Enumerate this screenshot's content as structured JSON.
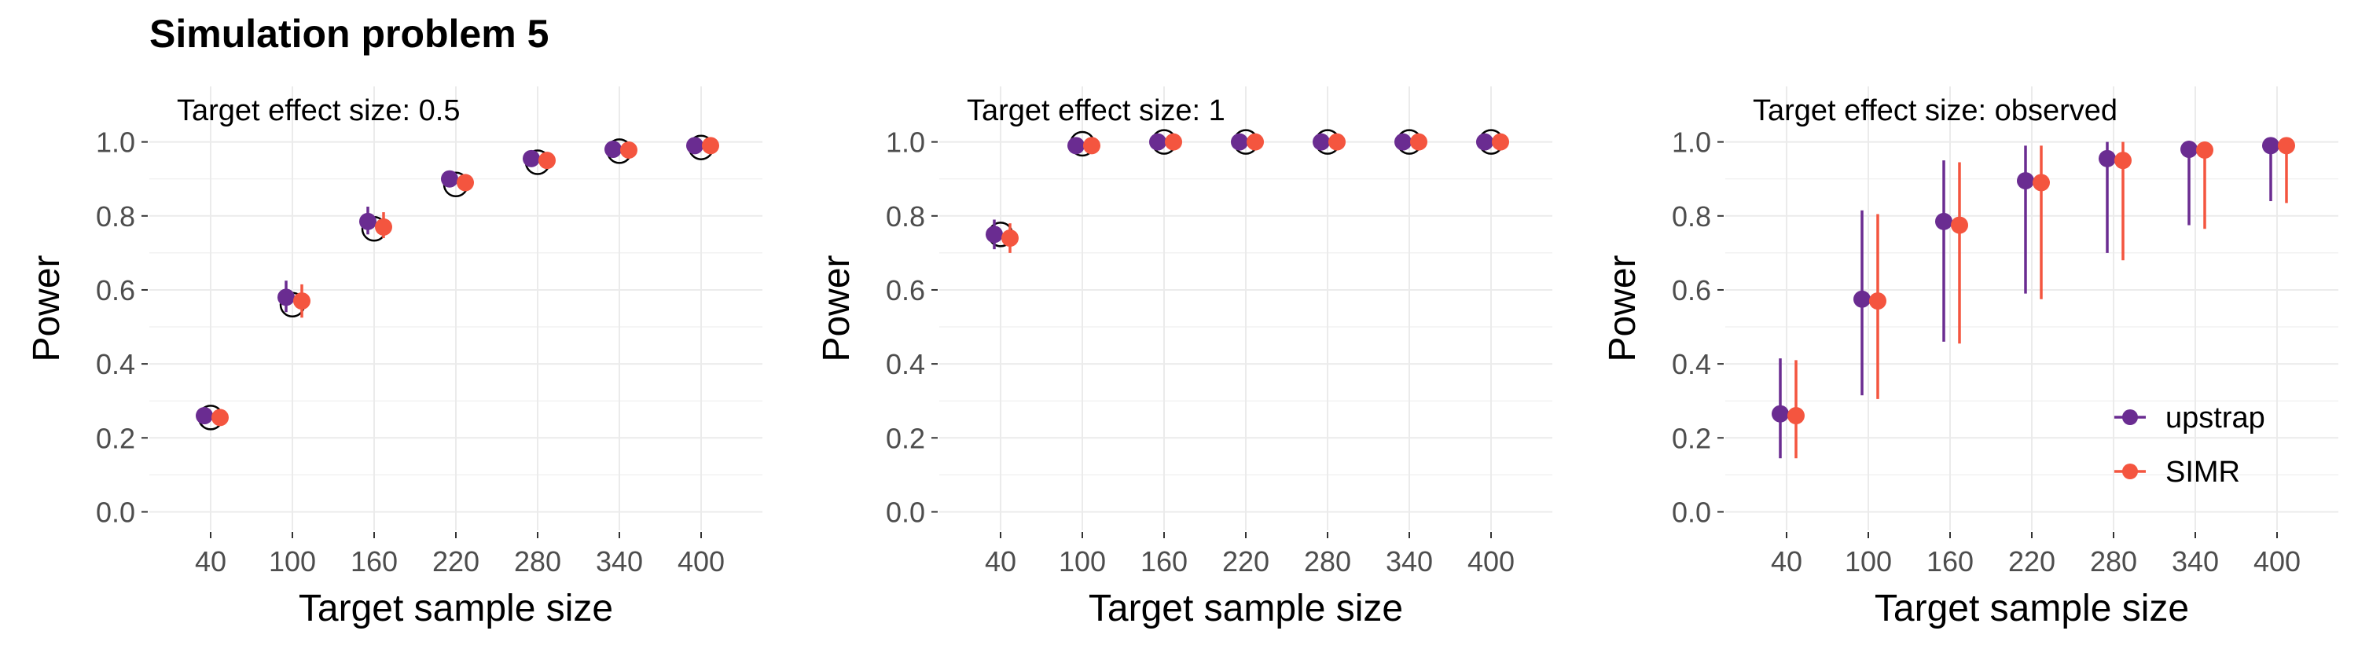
{
  "figure_title": "Simulation problem 5",
  "colors": {
    "upstrap": "#6a2c91",
    "simr": "#f4553f",
    "grid": "#ebebeb",
    "tick_text": "#4d4d4d"
  },
  "chart_data": [
    {
      "type": "scatter",
      "panel_label": "Target effect size: 0.5",
      "xlabel": "Target sample size",
      "ylabel": "Power",
      "x": [
        40,
        100,
        160,
        220,
        280,
        340,
        400
      ],
      "ylim": [
        -0.05,
        1.15
      ],
      "yticks": [
        0.0,
        0.2,
        0.4,
        0.6,
        0.8,
        1.0
      ],
      "ytick_labels": [
        "0.0",
        "0.2",
        "0.4",
        "0.6",
        "0.8",
        "1.0"
      ],
      "grid": true,
      "series": [
        {
          "name": "upstrap",
          "values": [
            0.26,
            0.58,
            0.785,
            0.9,
            0.955,
            0.98,
            0.99
          ],
          "lower": [
            0.25,
            0.54,
            0.75,
            0.885,
            0.945,
            0.975,
            0.985
          ],
          "upper": [
            0.275,
            0.625,
            0.825,
            0.915,
            0.965,
            0.985,
            0.995
          ]
        },
        {
          "name": "SIMR",
          "values": [
            0.255,
            0.57,
            0.77,
            0.89,
            0.95,
            0.978,
            0.99
          ],
          "lower": [
            0.245,
            0.525,
            0.74,
            0.875,
            0.94,
            0.97,
            0.985
          ],
          "upper": [
            0.27,
            0.615,
            0.81,
            0.905,
            0.96,
            0.985,
            0.995
          ]
        }
      ],
      "reference_markers": [
        0.255,
        0.56,
        0.765,
        0.885,
        0.945,
        0.975,
        0.985
      ]
    },
    {
      "type": "scatter",
      "panel_label": "Target effect size: 1",
      "xlabel": "Target sample size",
      "ylabel": "Power",
      "x": [
        40,
        100,
        160,
        220,
        280,
        340,
        400
      ],
      "ylim": [
        -0.05,
        1.15
      ],
      "yticks": [
        0.0,
        0.2,
        0.4,
        0.6,
        0.8,
        1.0
      ],
      "ytick_labels": [
        "0.0",
        "0.2",
        "0.4",
        "0.6",
        "0.8",
        "1.0"
      ],
      "grid": true,
      "series": [
        {
          "name": "upstrap",
          "values": [
            0.75,
            0.99,
            1.0,
            1.0,
            1.0,
            1.0,
            1.0
          ],
          "lower": [
            0.71,
            0.985,
            0.995,
            0.995,
            0.995,
            0.995,
            0.995
          ],
          "upper": [
            0.79,
            0.995,
            1.0,
            1.0,
            1.0,
            1.0,
            1.0
          ]
        },
        {
          "name": "SIMR",
          "values": [
            0.74,
            0.99,
            1.0,
            1.0,
            1.0,
            1.0,
            1.0
          ],
          "lower": [
            0.7,
            0.985,
            0.995,
            0.995,
            0.995,
            0.995,
            0.995
          ],
          "upper": [
            0.78,
            0.995,
            1.0,
            1.0,
            1.0,
            1.0,
            1.0
          ]
        }
      ],
      "reference_markers": [
        0.75,
        0.995,
        1.0,
        1.0,
        1.0,
        1.0,
        1.0
      ]
    },
    {
      "type": "scatter",
      "panel_label": "Target effect size: observed",
      "xlabel": "Target sample size",
      "ylabel": "Power",
      "x": [
        40,
        100,
        160,
        220,
        280,
        340,
        400
      ],
      "ylim": [
        -0.05,
        1.15
      ],
      "yticks": [
        0.0,
        0.2,
        0.4,
        0.6,
        0.8,
        1.0
      ],
      "ytick_labels": [
        "0.0",
        "0.2",
        "0.4",
        "0.6",
        "0.8",
        "1.0"
      ],
      "grid": true,
      "legend": {
        "position": "bottom-right",
        "entries": [
          "upstrap",
          "SIMR"
        ]
      },
      "series": [
        {
          "name": "upstrap",
          "values": [
            0.265,
            0.575,
            0.785,
            0.895,
            0.955,
            0.98,
            0.99
          ],
          "lower": [
            0.145,
            0.315,
            0.46,
            0.59,
            0.7,
            0.775,
            0.84
          ],
          "upper": [
            0.415,
            0.815,
            0.95,
            0.99,
            1.0,
            1.0,
            1.0
          ]
        },
        {
          "name": "SIMR",
          "values": [
            0.26,
            0.57,
            0.775,
            0.89,
            0.95,
            0.978,
            0.99
          ],
          "lower": [
            0.145,
            0.305,
            0.455,
            0.575,
            0.68,
            0.765,
            0.835
          ],
          "upper": [
            0.41,
            0.805,
            0.945,
            0.99,
            1.0,
            1.0,
            1.0
          ]
        }
      ],
      "reference_markers": []
    }
  ]
}
